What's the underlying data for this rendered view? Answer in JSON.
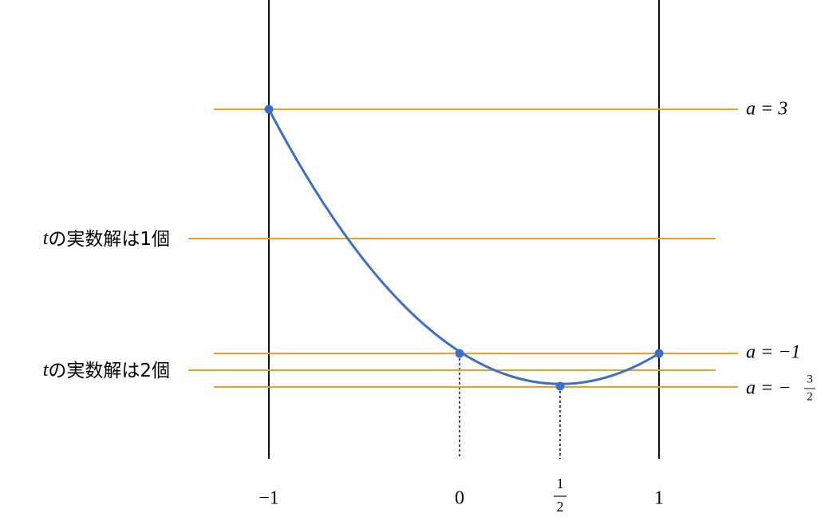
{
  "level_lines": [
    {
      "prefix": "a = 3"
    },
    {
      "variable": "t",
      "text": "の実数解は1個"
    },
    {
      "prefix": "a = −1"
    },
    {
      "variable": "t",
      "text": "の実数解は2個"
    },
    {
      "prefix": "a = −",
      "numerator": "3",
      "denominator": "2"
    }
  ],
  "x_ticks": [
    {
      "label": "−1"
    },
    {
      "label": "0"
    },
    {
      "numerator": "1",
      "denominator": "2"
    },
    {
      "label": "1"
    }
  ]
}
